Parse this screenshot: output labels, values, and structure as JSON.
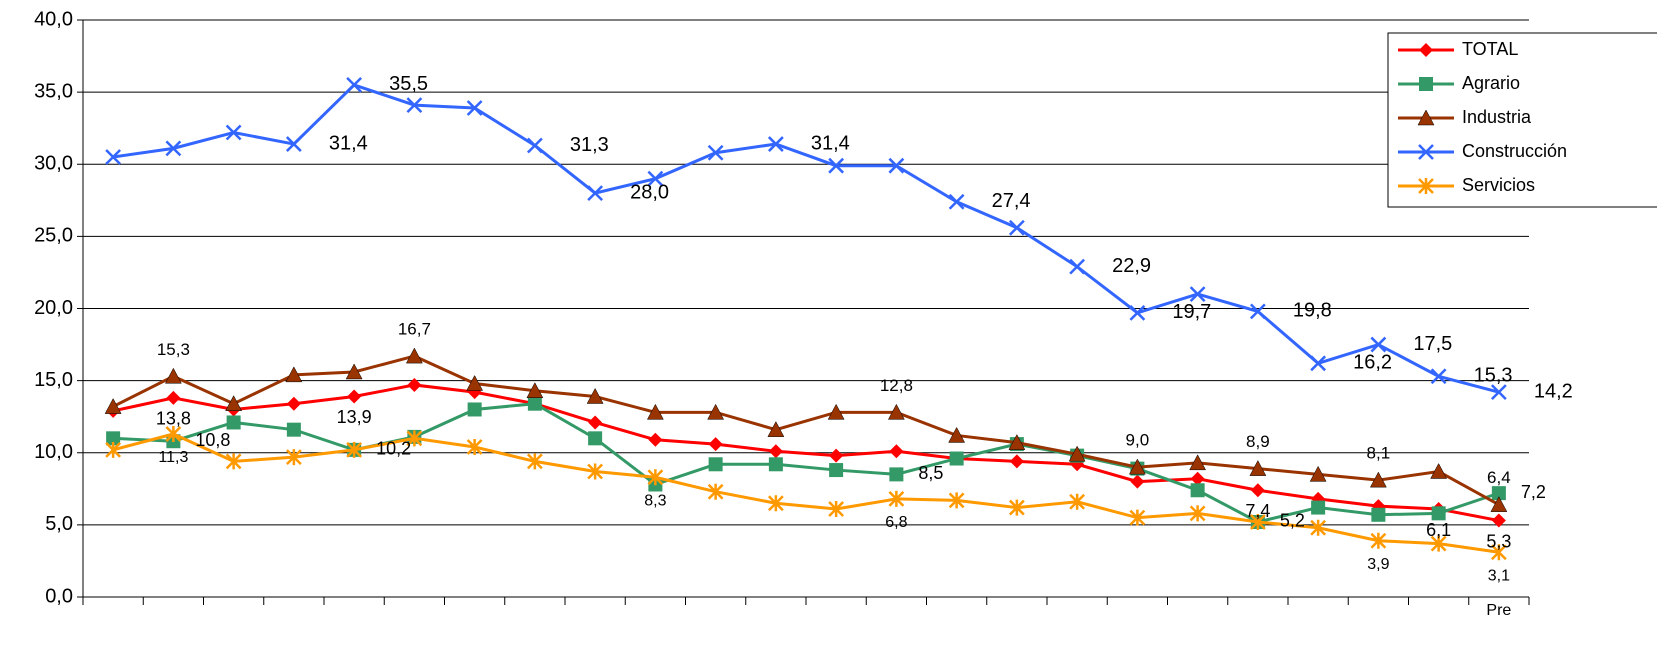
{
  "chart_data": {
    "type": "line",
    "categories": [
      null,
      null,
      null,
      null,
      null,
      null,
      null,
      null,
      null,
      null,
      null,
      null,
      null,
      null,
      null,
      null,
      null,
      null,
      null,
      null,
      null,
      null,
      null,
      "Pre"
    ],
    "ylim": [
      0,
      40
    ],
    "yticks": [
      {
        "value": 0,
        "label": "0,0"
      },
      {
        "value": 5,
        "label": "5,0"
      },
      {
        "value": 10,
        "label": "10,0"
      },
      {
        "value": 15,
        "label": "15,0"
      },
      {
        "value": 20,
        "label": "20,0"
      },
      {
        "value": 25,
        "label": "25,0"
      },
      {
        "value": 30,
        "label": "30,0"
      },
      {
        "value": 35,
        "label": "35,0"
      },
      {
        "value": 40,
        "label": "40,0"
      }
    ],
    "grid": true,
    "legend": "right",
    "series": [
      {
        "name": "TOTAL",
        "color": "#ff0000",
        "marker": "diamond",
        "values": [
          12.9,
          13.8,
          13.0,
          13.4,
          13.9,
          14.7,
          14.2,
          13.4,
          12.1,
          10.9,
          10.6,
          10.1,
          9.8,
          10.1,
          9.6,
          9.4,
          9.2,
          8.0,
          8.2,
          7.4,
          6.8,
          6.3,
          6.1,
          5.3
        ],
        "value_labels": [
          null,
          "13,8",
          null,
          null,
          "13,9",
          null,
          null,
          null,
          null,
          null,
          null,
          null,
          null,
          null,
          null,
          null,
          null,
          null,
          null,
          "7,4",
          null,
          null,
          "6,1",
          "5,3"
        ]
      },
      {
        "name": "Agrario",
        "color": "#339966",
        "marker": "square",
        "values": [
          11.0,
          10.8,
          12.1,
          11.6,
          10.2,
          11.1,
          13.0,
          13.4,
          11.0,
          7.8,
          9.2,
          9.2,
          8.8,
          8.5,
          9.6,
          10.6,
          9.8,
          8.9,
          7.4,
          5.2,
          6.2,
          5.7,
          5.8,
          7.2
        ],
        "value_labels": [
          null,
          "10,8",
          null,
          null,
          "10,2",
          null,
          null,
          null,
          null,
          null,
          null,
          null,
          null,
          "8,5",
          null,
          null,
          null,
          null,
          null,
          "5,2",
          null,
          null,
          null,
          "7,2"
        ]
      },
      {
        "name": "Industria",
        "color": "#993300",
        "marker": "triangle",
        "values": [
          13.2,
          15.3,
          13.4,
          15.4,
          15.6,
          16.7,
          14.8,
          14.3,
          13.9,
          12.8,
          12.8,
          11.6,
          12.8,
          12.8,
          11.2,
          10.7,
          9.9,
          9.0,
          9.3,
          8.9,
          8.5,
          8.1,
          8.7,
          6.4
        ],
        "value_labels": [
          null,
          "15,3",
          null,
          null,
          null,
          "16,7",
          null,
          null,
          null,
          null,
          null,
          null,
          null,
          "12,8",
          null,
          null,
          null,
          "9,0",
          null,
          "8,9",
          null,
          "8,1",
          null,
          "6,4"
        ]
      },
      {
        "name": "Construcción",
        "color": "#3366ff",
        "marker": "x",
        "values": [
          30.5,
          31.1,
          32.2,
          31.4,
          35.5,
          34.1,
          33.9,
          31.3,
          28.0,
          29.0,
          30.8,
          31.4,
          29.9,
          29.9,
          27.4,
          25.6,
          22.9,
          19.7,
          21.0,
          19.8,
          16.2,
          17.5,
          15.3,
          14.2
        ],
        "value_labels": [
          null,
          null,
          null,
          "31,4",
          "35,5",
          null,
          null,
          "31,3",
          "28,0",
          null,
          null,
          "31,4",
          null,
          null,
          "27,4",
          null,
          "22,9",
          "19,7",
          null,
          "19,8",
          "16,2",
          "17,5",
          "15,3",
          "14,2"
        ]
      },
      {
        "name": "Servicios",
        "color": "#ff9900",
        "marker": "star",
        "values": [
          10.2,
          11.3,
          9.4,
          9.7,
          10.2,
          11.0,
          10.4,
          9.4,
          8.7,
          8.3,
          7.3,
          6.5,
          6.1,
          6.8,
          6.7,
          6.2,
          6.6,
          5.5,
          5.8,
          5.2,
          4.8,
          3.9,
          3.7,
          3.1
        ],
        "value_labels": [
          null,
          "11,3",
          null,
          null,
          null,
          null,
          null,
          null,
          null,
          "8,3",
          null,
          null,
          null,
          "6,8",
          null,
          null,
          null,
          null,
          null,
          null,
          null,
          "3,9",
          null,
          "3,1"
        ]
      }
    ]
  }
}
